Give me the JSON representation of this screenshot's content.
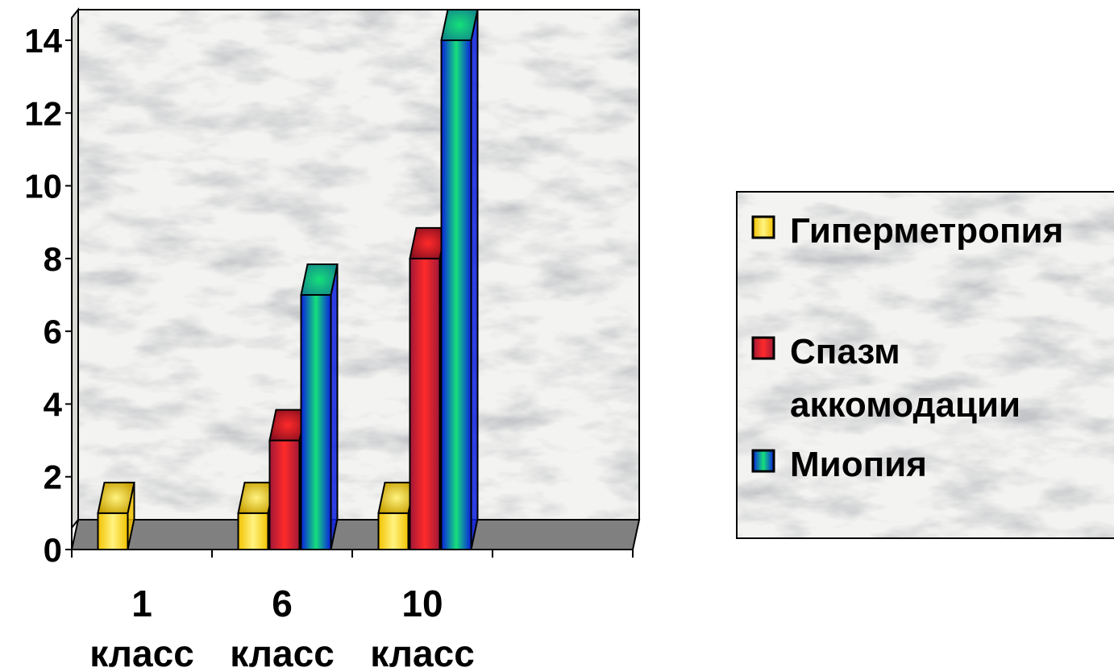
{
  "chart_data": {
    "type": "bar",
    "style": "3d-clustered-column",
    "title": "",
    "xlabel": "",
    "ylabel": "",
    "categories": [
      {
        "line1": "1",
        "line2": "класс"
      },
      {
        "line1": "6",
        "line2": "класс"
      },
      {
        "line1": "10",
        "line2": "класс"
      },
      {
        "line1": "",
        "line2": ""
      }
    ],
    "yticks": [
      "0",
      "2",
      "4",
      "6",
      "8",
      "10",
      "12",
      "14"
    ],
    "ylim": [
      0,
      14
    ],
    "grid": false,
    "legend_position": "right",
    "series": [
      {
        "name": "Гиперметропия",
        "values": [
          1,
          1,
          1,
          null
        ],
        "color": "#f2c200",
        "highlight": "#fff380",
        "top": "#c8a000"
      },
      {
        "name": "Спазм аккомодации",
        "name_lines": [
          "Спазм",
          "аккомодации"
        ],
        "values": [
          null,
          3,
          8,
          null
        ],
        "color": "#a01838",
        "highlight": "#ff2a2a",
        "top": "#8c1020"
      },
      {
        "name": "Миопия",
        "values": [
          null,
          7,
          14,
          null
        ],
        "color": "#0a1ee0",
        "highlight": "#15e07a",
        "top": "#128a8a"
      }
    ]
  }
}
